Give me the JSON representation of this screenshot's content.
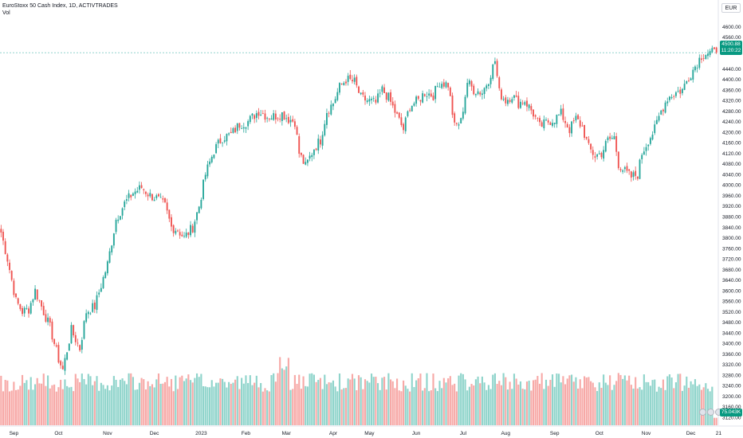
{
  "legend": {
    "symbol_line": "EuroStoxx 50 Cash Index, 1D, ACTIVTRADES",
    "volume_label": "Vol"
  },
  "currency": "EUR",
  "last_price": {
    "price": "4500.88",
    "countdown": "11:20:22"
  },
  "last_volume": "75.043K",
  "colors": {
    "up": "#26a69a",
    "down": "#ef5350",
    "up_vol": "#8fd4cb",
    "down_vol": "#f7a9a7",
    "price_line": "#26a69a"
  },
  "chart_data": {
    "type": "candlestick",
    "y_axis": {
      "min": 3120,
      "max": 4640,
      "step": 40,
      "ticks": [
        "4600.00",
        "4560.00",
        "4520.00",
        "4440.00",
        "4400.00",
        "4360.00",
        "4320.00",
        "4280.00",
        "4240.00",
        "4200.00",
        "4160.00",
        "4120.00",
        "4080.00",
        "4040.00",
        "4000.00",
        "3960.00",
        "3920.00",
        "3880.00",
        "3840.00",
        "3800.00",
        "3760.00",
        "3720.00",
        "3680.00",
        "3640.00",
        "3600.00",
        "3560.00",
        "3520.00",
        "3480.00",
        "3440.00",
        "3400.00",
        "3360.00",
        "3320.00",
        "3280.00",
        "3240.00",
        "3200.00",
        "3160.00",
        "3120.00"
      ]
    },
    "x_labels": [
      {
        "label": "Sep",
        "bar": 6
      },
      {
        "label": "Oct",
        "bar": 27
      },
      {
        "label": "Nov",
        "bar": 50
      },
      {
        "label": "Dec",
        "bar": 72
      },
      {
        "label": "2023",
        "bar": 94
      },
      {
        "label": "Feb",
        "bar": 115
      },
      {
        "label": "Mar",
        "bar": 134
      },
      {
        "label": "Apr",
        "bar": 156
      },
      {
        "label": "May",
        "bar": 173
      },
      {
        "label": "Jun",
        "bar": 195
      },
      {
        "label": "Jul",
        "bar": 217
      },
      {
        "label": "Aug",
        "bar": 237
      },
      {
        "label": "Sep",
        "bar": 260
      },
      {
        "label": "Oct",
        "bar": 281
      },
      {
        "label": "Nov",
        "bar": 303
      },
      {
        "label": "Dec",
        "bar": 324
      },
      {
        "label": "21",
        "bar": 337
      }
    ],
    "anchors": [
      [
        0,
        3820
      ],
      [
        3,
        3720
      ],
      [
        7,
        3560
      ],
      [
        10,
        3520
      ],
      [
        13,
        3530
      ],
      [
        16,
        3600
      ],
      [
        20,
        3520
      ],
      [
        23,
        3460
      ],
      [
        27,
        3340
      ],
      [
        29,
        3300
      ],
      [
        33,
        3450
      ],
      [
        37,
        3380
      ],
      [
        40,
        3520
      ],
      [
        44,
        3540
      ],
      [
        47,
        3620
      ],
      [
        50,
        3700
      ],
      [
        54,
        3870
      ],
      [
        58,
        3930
      ],
      [
        62,
        3970
      ],
      [
        66,
        3990
      ],
      [
        70,
        3960
      ],
      [
        73,
        3950
      ],
      [
        77,
        3920
      ],
      [
        80,
        3840
      ],
      [
        83,
        3830
      ],
      [
        86,
        3800
      ],
      [
        90,
        3840
      ],
      [
        93,
        3920
      ],
      [
        96,
        4040
      ],
      [
        100,
        4130
      ],
      [
        104,
        4180
      ],
      [
        108,
        4190
      ],
      [
        112,
        4230
      ],
      [
        116,
        4240
      ],
      [
        121,
        4280
      ],
      [
        125,
        4260
      ],
      [
        128,
        4260
      ],
      [
        132,
        4270
      ],
      [
        135,
        4250
      ],
      [
        138,
        4240
      ],
      [
        140,
        4120
      ],
      [
        143,
        4070
      ],
      [
        147,
        4140
      ],
      [
        150,
        4170
      ],
      [
        153,
        4280
      ],
      [
        156,
        4310
      ],
      [
        159,
        4370
      ],
      [
        162,
        4400
      ],
      [
        166,
        4390
      ],
      [
        169,
        4330
      ],
      [
        172,
        4320
      ],
      [
        176,
        4310
      ],
      [
        179,
        4360
      ],
      [
        182,
        4330
      ],
      [
        186,
        4260
      ],
      [
        189,
        4210
      ],
      [
        192,
        4300
      ],
      [
        196,
        4320
      ],
      [
        199,
        4350
      ],
      [
        203,
        4340
      ],
      [
        206,
        4390
      ],
      [
        210,
        4380
      ],
      [
        213,
        4220
      ],
      [
        216,
        4240
      ],
      [
        219,
        4390
      ],
      [
        222,
        4360
      ],
      [
        226,
        4350
      ],
      [
        229,
        4400
      ],
      [
        232,
        4470
      ],
      [
        234,
        4350
      ],
      [
        237,
        4320
      ],
      [
        240,
        4340
      ],
      [
        243,
        4310
      ],
      [
        246,
        4320
      ],
      [
        250,
        4270
      ],
      [
        253,
        4220
      ],
      [
        257,
        4240
      ],
      [
        260,
        4250
      ],
      [
        263,
        4270
      ],
      [
        267,
        4210
      ],
      [
        270,
        4250
      ],
      [
        273,
        4220
      ],
      [
        276,
        4140
      ],
      [
        279,
        4110
      ],
      [
        282,
        4120
      ],
      [
        285,
        4170
      ],
      [
        288,
        4180
      ],
      [
        290,
        4080
      ],
      [
        293,
        4050
      ],
      [
        296,
        4030
      ],
      [
        299,
        4040
      ],
      [
        301,
        4120
      ],
      [
        304,
        4170
      ],
      [
        307,
        4210
      ],
      [
        310,
        4280
      ],
      [
        313,
        4330
      ],
      [
        317,
        4350
      ],
      [
        320,
        4360
      ],
      [
        323,
        4410
      ],
      [
        326,
        4450
      ],
      [
        329,
        4490
      ],
      [
        331,
        4500
      ]
    ],
    "last_close": 4500.88,
    "volume_axis_max_label": "75.043K",
    "series": [
      {
        "name": "EuroStoxx 50 Cash Index",
        "kind": "ohlc"
      },
      {
        "name": "Vol",
        "kind": "volume"
      }
    ]
  }
}
